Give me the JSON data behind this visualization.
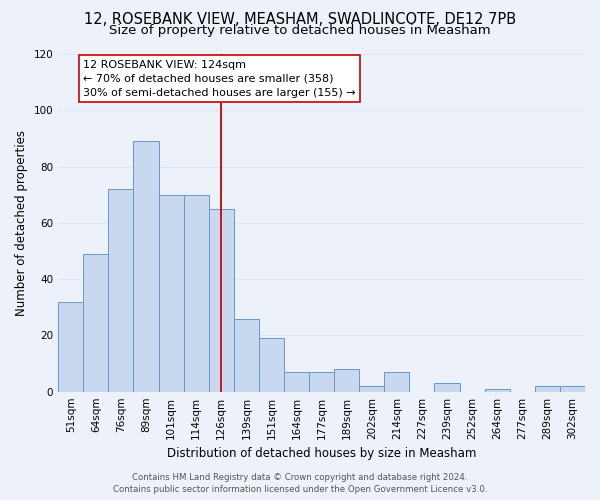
{
  "title": "12, ROSEBANK VIEW, MEASHAM, SWADLINCOTE, DE12 7PB",
  "subtitle": "Size of property relative to detached houses in Measham",
  "xlabel": "Distribution of detached houses by size in Measham",
  "ylabel": "Number of detached properties",
  "categories": [
    "51sqm",
    "64sqm",
    "76sqm",
    "89sqm",
    "101sqm",
    "114sqm",
    "126sqm",
    "139sqm",
    "151sqm",
    "164sqm",
    "177sqm",
    "189sqm",
    "202sqm",
    "214sqm",
    "227sqm",
    "239sqm",
    "252sqm",
    "264sqm",
    "277sqm",
    "289sqm",
    "302sqm"
  ],
  "values": [
    32,
    49,
    72,
    89,
    70,
    70,
    65,
    26,
    19,
    7,
    7,
    8,
    2,
    7,
    0,
    3,
    0,
    1,
    0,
    2,
    2
  ],
  "bar_color": "#c8d8ee",
  "bar_edge_color": "#6699cc",
  "vline_x_index": 6,
  "vline_color": "#cc0000",
  "annotation_title": "12 ROSEBANK VIEW: 124sqm",
  "annotation_line1": "← 70% of detached houses are smaller (358)",
  "annotation_line2": "30% of semi-detached houses are larger (155) →",
  "annotation_box_color": "#ffffff",
  "annotation_box_edge": "#cc0000",
  "ylim": [
    0,
    120
  ],
  "yticks": [
    0,
    20,
    40,
    60,
    80,
    100,
    120
  ],
  "footer_line1": "Contains HM Land Registry data © Crown copyright and database right 2024.",
  "footer_line2": "Contains public sector information licensed under the Open Government Licence v3.0.",
  "bg_color": "#edf1f9",
  "grid_color": "#dce5f5",
  "title_fontsize": 10.5,
  "subtitle_fontsize": 9.5,
  "tick_fontsize": 7.5,
  "ylabel_fontsize": 8.5,
  "xlabel_fontsize": 8.5,
  "annotation_fontsize": 8.0,
  "footer_fontsize": 6.2
}
